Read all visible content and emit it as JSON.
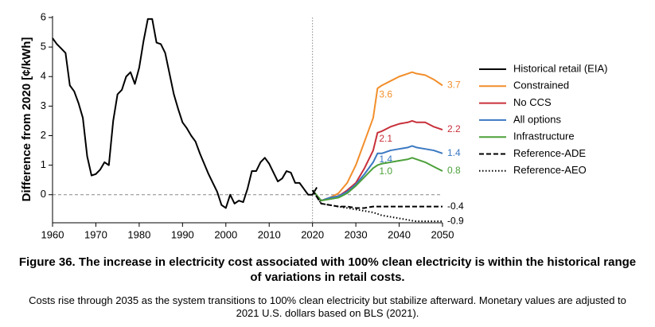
{
  "chart_data": {
    "type": "line",
    "ylabel": "Difference from 2020 [¢/kWh]",
    "title": "Figure 36. The increase in electricity cost associated with 100% clean electricity is within the historical range of variations in retail costs.",
    "subtitle": "Costs rise through 2035 as the system transitions to 100% clean electricity but stabilize afterward. Monetary values are adjusted to 2021 U.S. dollars based on BLS (2021).",
    "xlim": [
      1960,
      2050
    ],
    "ylim": [
      -0.95,
      6
    ],
    "xticks": [
      1960,
      1970,
      1980,
      1990,
      2000,
      2010,
      2020,
      2030,
      2040,
      2050
    ],
    "yticks": [
      0,
      1,
      2,
      3,
      4,
      5,
      6
    ],
    "ref_lines": {
      "x": 2020,
      "y": 0
    },
    "series": [
      {
        "name": "Historical retail (EIA)",
        "color": "#000000",
        "dash": "solid",
        "x": [
          1960,
          1961,
          1962,
          1963,
          1964,
          1965,
          1966,
          1967,
          1968,
          1969,
          1970,
          1971,
          1972,
          1973,
          1974,
          1975,
          1976,
          1977,
          1978,
          1979,
          1980,
          1981,
          1982,
          1983,
          1984,
          1985,
          1986,
          1987,
          1988,
          1989,
          1990,
          1991,
          1992,
          1993,
          1994,
          1995,
          1996,
          1997,
          1998,
          1999,
          2000,
          2001,
          2002,
          2003,
          2004,
          2005,
          2006,
          2007,
          2008,
          2009,
          2010,
          2011,
          2012,
          2013,
          2014,
          2015,
          2016,
          2017,
          2018,
          2019,
          2020,
          2021
        ],
        "values": [
          5.3,
          5.1,
          4.95,
          4.8,
          3.7,
          3.5,
          3.1,
          2.6,
          1.3,
          0.65,
          0.7,
          0.85,
          1.1,
          1.0,
          2.5,
          3.4,
          3.55,
          4.0,
          4.15,
          3.75,
          4.3,
          5.2,
          5.95,
          5.95,
          5.15,
          5.1,
          4.8,
          4.1,
          3.4,
          2.9,
          2.45,
          2.25,
          2.0,
          1.8,
          1.4,
          1.05,
          0.7,
          0.4,
          0.1,
          -0.35,
          -0.45,
          0.0,
          -0.3,
          -0.2,
          -0.25,
          0.2,
          0.8,
          0.8,
          1.1,
          1.25,
          1.05,
          0.75,
          0.45,
          0.55,
          0.8,
          0.75,
          0.4,
          0.4,
          0.2,
          0.0,
          0.0,
          0.25
        ]
      },
      {
        "name": "Constrained",
        "color": "#f28e2b",
        "dash": "solid",
        "x": [
          2020,
          2022,
          2024,
          2026,
          2028,
          2030,
          2032,
          2034,
          2035,
          2036,
          2038,
          2040,
          2042,
          2043,
          2044,
          2046,
          2048,
          2050
        ],
        "values": [
          0.15,
          -0.2,
          -0.1,
          0.05,
          0.4,
          1.0,
          1.8,
          2.6,
          3.6,
          3.7,
          3.85,
          4.0,
          4.1,
          4.15,
          4.1,
          4.05,
          3.9,
          3.7
        ]
      },
      {
        "name": "No CCS",
        "color": "#c8303a",
        "dash": "solid",
        "x": [
          2020,
          2022,
          2024,
          2026,
          2028,
          2030,
          2032,
          2034,
          2035,
          2036,
          2038,
          2040,
          2042,
          2043,
          2044,
          2046,
          2048,
          2050
        ],
        "values": [
          0.15,
          -0.2,
          -0.1,
          -0.05,
          0.15,
          0.4,
          0.9,
          1.5,
          2.1,
          2.15,
          2.3,
          2.4,
          2.45,
          2.5,
          2.45,
          2.45,
          2.3,
          2.2
        ]
      },
      {
        "name": "All options",
        "color": "#3a78c2",
        "dash": "solid",
        "x": [
          2020,
          2022,
          2024,
          2026,
          2028,
          2030,
          2032,
          2034,
          2035,
          2036,
          2038,
          2040,
          2042,
          2043,
          2044,
          2046,
          2048,
          2050
        ],
        "values": [
          0.15,
          -0.2,
          -0.1,
          -0.05,
          0.1,
          0.35,
          0.7,
          1.1,
          1.4,
          1.4,
          1.5,
          1.55,
          1.6,
          1.65,
          1.6,
          1.55,
          1.5,
          1.4
        ]
      },
      {
        "name": "Infrastructure",
        "color": "#4ca03a",
        "dash": "solid",
        "x": [
          2020,
          2022,
          2024,
          2026,
          2028,
          2030,
          2032,
          2034,
          2035,
          2036,
          2038,
          2040,
          2042,
          2043,
          2044,
          2046,
          2048,
          2050
        ],
        "values": [
          0.15,
          -0.2,
          -0.15,
          -0.1,
          0.05,
          0.3,
          0.6,
          0.9,
          1.0,
          1.05,
          1.1,
          1.15,
          1.2,
          1.25,
          1.2,
          1.1,
          0.95,
          0.8
        ]
      },
      {
        "name": "Reference-ADE",
        "color": "#000000",
        "dash": "dashed",
        "x": [
          2020,
          2022,
          2024,
          2026,
          2028,
          2030,
          2032,
          2034,
          2035,
          2036,
          2038,
          2040,
          2042,
          2043,
          2044,
          2046,
          2048,
          2050
        ],
        "values": [
          0.15,
          -0.3,
          -0.35,
          -0.4,
          -0.4,
          -0.45,
          -0.45,
          -0.4,
          -0.4,
          -0.4,
          -0.4,
          -0.4,
          -0.4,
          -0.4,
          -0.4,
          -0.4,
          -0.4,
          -0.4
        ]
      },
      {
        "name": "Reference-AEO",
        "color": "#000000",
        "dash": "dotted",
        "x": [
          2020,
          2022,
          2024,
          2026,
          2028,
          2030,
          2032,
          2034,
          2035,
          2036,
          2038,
          2040,
          2042,
          2043,
          2044,
          2046,
          2048,
          2050
        ],
        "values": [
          0.15,
          -0.3,
          -0.35,
          -0.4,
          -0.45,
          -0.5,
          -0.55,
          -0.6,
          -0.65,
          -0.7,
          -0.75,
          -0.8,
          -0.85,
          -0.88,
          -0.9,
          -0.9,
          -0.9,
          -0.9
        ]
      }
    ],
    "annotations": [
      {
        "text": "3.7",
        "x": 2050,
        "y": 3.7,
        "color": "#f28e2b"
      },
      {
        "text": "2.2",
        "x": 2050,
        "y": 2.2,
        "color": "#c8303a"
      },
      {
        "text": "1.4",
        "x": 2050,
        "y": 1.4,
        "color": "#3a78c2"
      },
      {
        "text": "0.8",
        "x": 2050,
        "y": 0.8,
        "color": "#4ca03a"
      },
      {
        "text": "-0.4",
        "x": 2050,
        "y": -0.4,
        "color": "#000000"
      },
      {
        "text": "-0.9",
        "x": 2050,
        "y": -0.9,
        "color": "#000000"
      },
      {
        "text": "3.6",
        "x": 2035,
        "y": 3.6,
        "color": "#f28e2b"
      },
      {
        "text": "2.1",
        "x": 2035,
        "y": 2.1,
        "color": "#c8303a"
      },
      {
        "text": "1.4",
        "x": 2035,
        "y": 1.4,
        "color": "#3a78c2"
      },
      {
        "text": "1.0",
        "x": 2035,
        "y": 1.0,
        "color": "#4ca03a"
      }
    ]
  }
}
